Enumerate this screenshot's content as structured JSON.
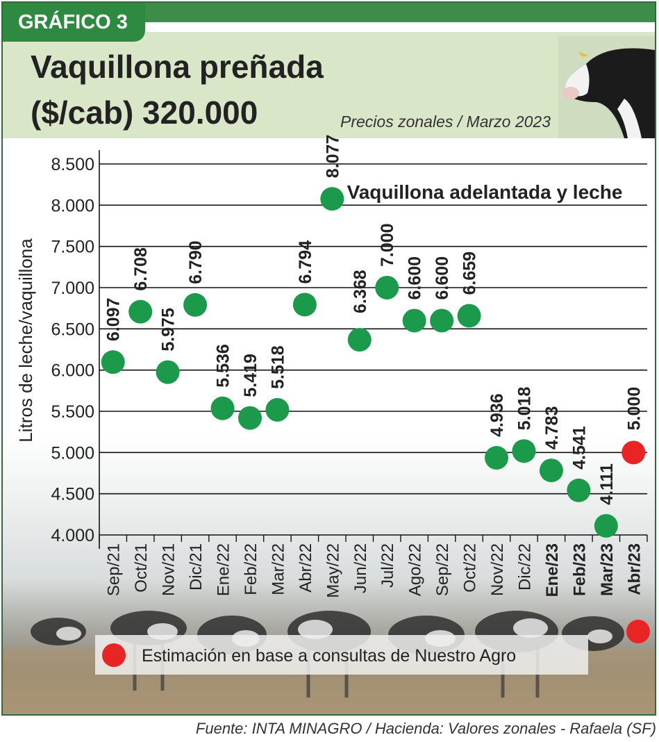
{
  "badge": "GRÁFICO 3",
  "title_line1": "Vaquillona preñada",
  "title_line2": "($/cab) 320.000",
  "note": "Precios zonales / Marzo 2023",
  "source": "Fuente: INTA MINAGRO /  Hacienda: Valores zonales - Rafaela (SF)",
  "legend_estimate": "Estimación en base a consultas de Nuestro Agro",
  "colors": {
    "actual": "#1a9a4a",
    "estimate": "#e82424",
    "header": "#d9e6c8",
    "badge": "#2f8a41"
  },
  "chart_data": {
    "type": "scatter",
    "annotation": "Vaquillona adelantada y leche",
    "ylabel": "Litros de leche/vaquillona",
    "xlabel": "",
    "ylim": [
      4000,
      8500
    ],
    "yticks": [
      4000,
      4500,
      5000,
      5500,
      6000,
      6500,
      7000,
      7500,
      8000,
      8500
    ],
    "ytick_labels": [
      "4.000",
      "4.500",
      "5.000",
      "5.500",
      "6.000",
      "6.500",
      "7.000",
      "7.500",
      "8.000",
      "8.500"
    ],
    "categories": [
      "Sep/21",
      "Oct/21",
      "Nov/21",
      "Dic/21",
      "Ene/22",
      "Feb/22",
      "Mar/22",
      "Abr/22",
      "May/22",
      "Jun/22",
      "Jul/22",
      "Ago/22",
      "Sep/22",
      "Oct/22",
      "Nov/22",
      "Dic/22",
      "Ene/23",
      "Feb/23",
      "Mar/23",
      "Abr/23"
    ],
    "bold_categories": [
      "Ene/23",
      "Feb/23",
      "Mar/23",
      "Abr/23"
    ],
    "values": [
      6097,
      6708,
      5975,
      6790,
      5536,
      5419,
      5518,
      6794,
      8077,
      6368,
      7000,
      6600,
      6600,
      6659,
      4936,
      5018,
      4783,
      4541,
      4111,
      5000
    ],
    "value_labels": [
      "6.097",
      "6.708",
      "5.975",
      "6.790",
      "5.536",
      "5.419",
      "5.518",
      "6.794",
      "8.077",
      "6.368",
      "7.000",
      "6.600",
      "6.600",
      "6.659",
      "4.936",
      "5.018",
      "4.783",
      "4.541",
      "4.111",
      "5.000"
    ],
    "estimated": [
      false,
      false,
      false,
      false,
      false,
      false,
      false,
      false,
      false,
      false,
      false,
      false,
      false,
      false,
      false,
      false,
      false,
      false,
      false,
      true
    ],
    "grid": true
  }
}
